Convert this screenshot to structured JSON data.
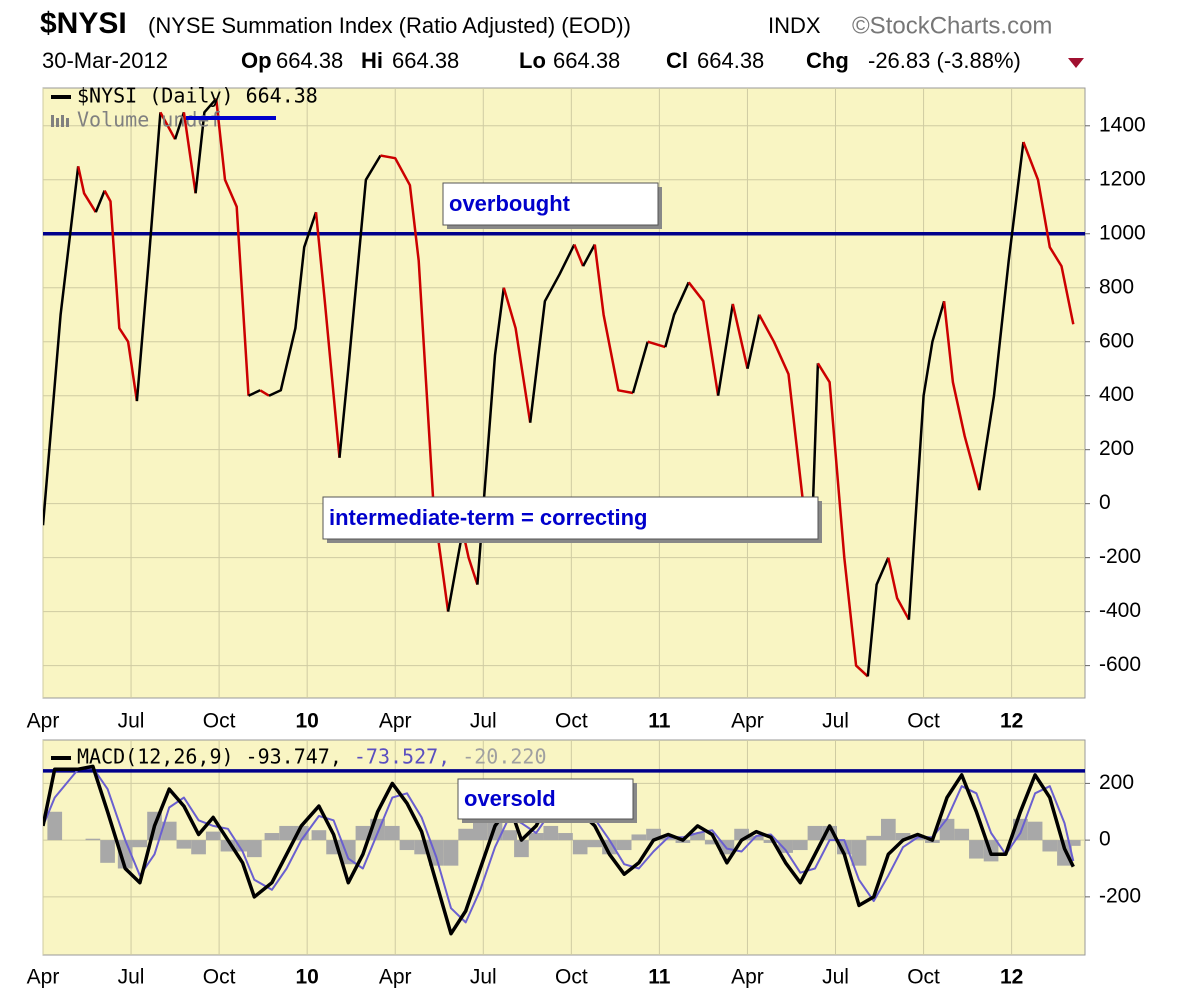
{
  "header": {
    "symbol": "$NYSI",
    "subtitle": "(NYSE Summation Index (Ratio Adjusted) (EOD))",
    "exchange": "INDX",
    "source": "©StockCharts.com",
    "date": "30-Mar-2012",
    "open_label": "Op",
    "open": 664.38,
    "high_label": "Hi",
    "high": 664.38,
    "low_label": "Lo",
    "low": 664.38,
    "close_label": "Cl",
    "close": 664.38,
    "change_label": "Chg",
    "change": "-26.83 (-3.88%)"
  },
  "chart_data": [
    {
      "type": "line",
      "legend": [
        {
          "text": "$NYSI (Daily) 664.38",
          "color": "#000000"
        },
        {
          "text": "Volume undef",
          "color": "#808080"
        }
      ],
      "annotations": [
        "overbought",
        "intermediate-term = correcting"
      ],
      "hlines": [
        {
          "value": 1000,
          "color": "#00008b"
        }
      ],
      "xlim": [
        0,
        35.5
      ],
      "ylim": [
        -720,
        1540
      ],
      "xticks": [
        {
          "value": 0,
          "label": "Apr"
        },
        {
          "value": 3,
          "label": "Jul"
        },
        {
          "value": 6,
          "label": "Oct"
        },
        {
          "value": 9,
          "label": "10"
        },
        {
          "value": 12,
          "label": "Apr"
        },
        {
          "value": 15,
          "label": "Jul"
        },
        {
          "value": 18,
          "label": "Oct"
        },
        {
          "value": 21,
          "label": "11"
        },
        {
          "value": 24,
          "label": "Apr"
        },
        {
          "value": 27,
          "label": "Jul"
        },
        {
          "value": 30,
          "label": "Oct"
        },
        {
          "value": 33,
          "label": "12"
        }
      ],
      "yticks": [
        -600,
        -400,
        -200,
        0,
        200,
        400,
        600,
        800,
        1000,
        1200,
        1400
      ],
      "grid": true,
      "up_color": "#000000",
      "down_color": "#cc0000",
      "series": [
        {
          "name": "$NYSI",
          "x": [
            0,
            0.6,
            1.2,
            1.4,
            1.8,
            2.1,
            2.3,
            2.6,
            2.9,
            3.2,
            3.6,
            4.0,
            4.5,
            4.8,
            5.2,
            5.5,
            5.9,
            6.2,
            6.6,
            7.0,
            7.4,
            7.7,
            8.1,
            8.6,
            8.9,
            9.3,
            9.6,
            10.1,
            10.4,
            11.0,
            11.5,
            12.0,
            12.5,
            12.8,
            13.3,
            13.8,
            14.3,
            14.5,
            14.8,
            15.4,
            15.7,
            16.1,
            16.6,
            17.1,
            17.6,
            18.1,
            18.4,
            18.8,
            19.1,
            19.6,
            20.1,
            20.6,
            21.2,
            21.5,
            22.0,
            22.5,
            23.0,
            23.5,
            24.0,
            24.4,
            24.9,
            25.4,
            25.9,
            26.2,
            26.4,
            26.8,
            27.3,
            27.7,
            28.1,
            28.4,
            28.8,
            29.1,
            29.5,
            30.0,
            30.3,
            30.7,
            31.0,
            31.4,
            31.9,
            32.4,
            32.9,
            33.4,
            33.9,
            34.3,
            34.7,
            35.1
          ],
          "values": [
            -80,
            700,
            1250,
            1150,
            1080,
            1160,
            1120,
            650,
            600,
            380,
            900,
            1450,
            1350,
            1450,
            1150,
            1450,
            1500,
            1200,
            1100,
            400,
            420,
            400,
            420,
            650,
            950,
            1080,
            750,
            170,
            500,
            1200,
            1290,
            1280,
            1180,
            900,
            0,
            -400,
            -100,
            -200,
            -300,
            550,
            800,
            650,
            300,
            750,
            850,
            960,
            880,
            960,
            700,
            420,
            410,
            600,
            580,
            700,
            820,
            750,
            400,
            740,
            500,
            700,
            600,
            480,
            0,
            -100,
            520,
            450,
            -200,
            -600,
            -640,
            -300,
            -200,
            -350,
            -430,
            400,
            600,
            750,
            450,
            250,
            50,
            400,
            900,
            1340,
            1200,
            950,
            880,
            664.38
          ]
        }
      ]
    },
    {
      "type": "line",
      "legend": [
        {
          "text": "MACD(12,26,9)",
          "color": "#000000"
        },
        {
          "text": "-93.747,",
          "color": "#000000"
        },
        {
          "text": "-73.527,",
          "color": "#5a4fc0"
        },
        {
          "text": "-20.220",
          "color": "#a0a0a0"
        }
      ],
      "annotations": [
        "oversold"
      ],
      "hlines": [
        {
          "value": 244,
          "color": "#00008b"
        }
      ],
      "xlim": [
        0,
        35.5
      ],
      "ylim": [
        -405,
        353
      ],
      "xticks": [
        {
          "value": 0,
          "label": "Apr"
        },
        {
          "value": 3,
          "label": "Jul"
        },
        {
          "value": 6,
          "label": "Oct"
        },
        {
          "value": 9,
          "label": "10"
        },
        {
          "value": 12,
          "label": "Apr"
        },
        {
          "value": 15,
          "label": "Jul"
        },
        {
          "value": 18,
          "label": "Oct"
        },
        {
          "value": 21,
          "label": "11"
        },
        {
          "value": 24,
          "label": "Apr"
        },
        {
          "value": 27,
          "label": "Jul"
        },
        {
          "value": 30,
          "label": "Oct"
        },
        {
          "value": 33,
          "label": "12"
        }
      ],
      "yticks": [
        -200,
        0,
        200
      ],
      "grid": true,
      "x": [
        0,
        0.4,
        1.2,
        1.7,
        2.2,
        2.8,
        3.3,
        3.8,
        4.3,
        4.8,
        5.3,
        5.8,
        6.3,
        6.8,
        7.2,
        7.8,
        8.3,
        8.8,
        9.4,
        9.9,
        10.4,
        10.9,
        11.4,
        11.9,
        12.4,
        12.9,
        13.4,
        13.9,
        14.4,
        14.9,
        15.4,
        15.9,
        16.3,
        16.8,
        17.3,
        17.8,
        18.3,
        18.8,
        19.3,
        19.8,
        20.3,
        20.8,
        21.3,
        21.8,
        22.3,
        22.8,
        23.3,
        23.8,
        24.3,
        24.8,
        25.3,
        25.8,
        26.3,
        26.8,
        27.3,
        27.8,
        28.3,
        28.8,
        29.3,
        29.8,
        30.3,
        30.8,
        31.3,
        31.8,
        32.3,
        32.8,
        33.3,
        33.8,
        34.3,
        34.8,
        35.1
      ],
      "series": [
        {
          "name": "Histogram",
          "kind": "histogram",
          "color": "#a8a8a8",
          "values": [
            0,
            100,
            0,
            5,
            -80,
            -100,
            -25,
            100,
            65,
            -30,
            -50,
            30,
            -40,
            -40,
            -60,
            25,
            50,
            50,
            35,
            -50,
            -85,
            50,
            75,
            50,
            -35,
            -50,
            -90,
            -90,
            40,
            75,
            75,
            35,
            -60,
            25,
            50,
            25,
            -50,
            -25,
            -50,
            -35,
            20,
            40,
            10,
            -10,
            25,
            -15,
            -50,
            40,
            15,
            -10,
            -45,
            -35,
            50,
            50,
            -50,
            -90,
            15,
            75,
            25,
            10,
            -10,
            75,
            40,
            -65,
            -75,
            0,
            75,
            65,
            -40,
            -90,
            -20.22
          ]
        },
        {
          "name": "Signal",
          "kind": "line",
          "color": "#6a5fd0",
          "width": 2,
          "values": [
            50,
            150,
            250,
            255,
            180,
            0,
            -125,
            -50,
            115,
            150,
            70,
            50,
            40,
            -40,
            -140,
            -175,
            -100,
            0,
            85,
            70,
            -65,
            -100,
            25,
            150,
            165,
            80,
            -60,
            -240,
            -290,
            -175,
            -25,
            85,
            60,
            25,
            100,
            175,
            150,
            75,
            0,
            -85,
            -100,
            -40,
            10,
            10,
            25,
            35,
            -30,
            -40,
            15,
            20,
            -35,
            -115,
            -100,
            0,
            0,
            -140,
            -215,
            -125,
            -25,
            10,
            10,
            75,
            190,
            165,
            25,
            -50,
            25,
            165,
            190,
            60,
            -73.527
          ]
        },
        {
          "name": "MACD",
          "kind": "line",
          "color": "#000000",
          "width": 3.5,
          "values": [
            50,
            250,
            250,
            260,
            100,
            -100,
            -150,
            50,
            180,
            120,
            20,
            80,
            0,
            -80,
            -200,
            -150,
            -50,
            50,
            120,
            20,
            -150,
            -50,
            100,
            200,
            130,
            30,
            -150,
            -330,
            -250,
            -100,
            50,
            120,
            0,
            50,
            150,
            200,
            100,
            50,
            -50,
            -120,
            -80,
            0,
            20,
            0,
            50,
            20,
            -80,
            0,
            30,
            10,
            -80,
            -150,
            -50,
            50,
            -50,
            -230,
            -200,
            -50,
            0,
            20,
            0,
            150,
            230,
            100,
            -50,
            -50,
            100,
            230,
            150,
            -30,
            -93.747
          ]
        }
      ]
    }
  ]
}
